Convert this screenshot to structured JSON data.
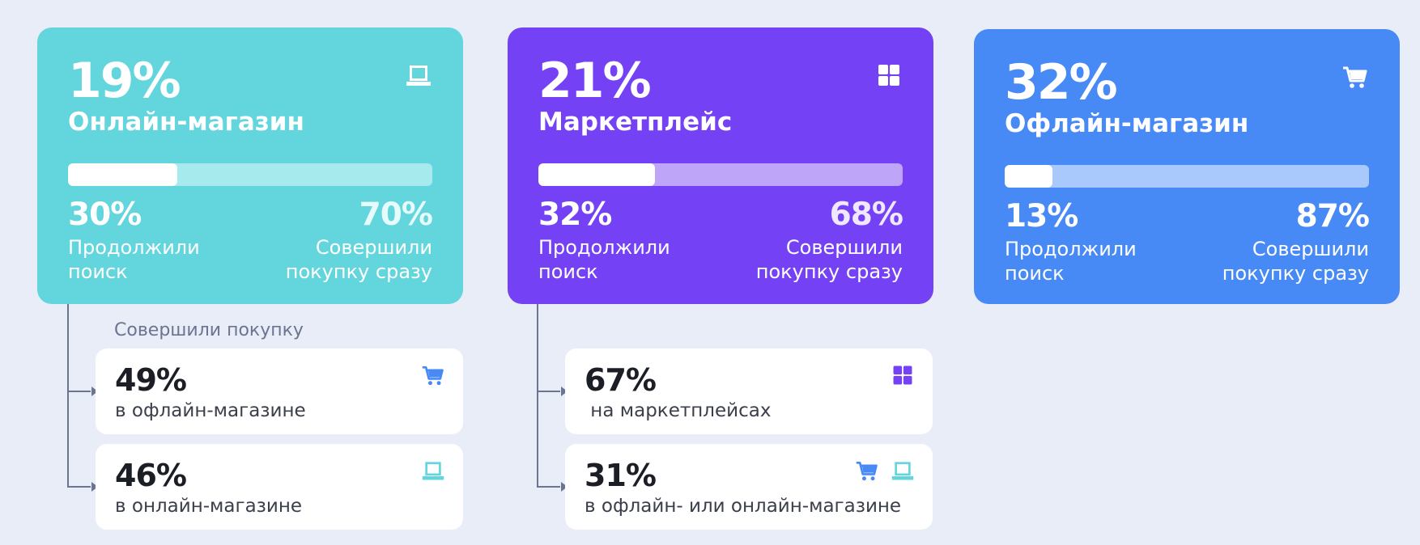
{
  "colors": {
    "online": "#62d5dd",
    "marketplace": "#7441f5",
    "offline": "#4789f5",
    "connector": "#6b7591"
  },
  "cards": [
    {
      "percent": "19%",
      "name": "Онлайн-магазин",
      "icon": "laptop-icon",
      "continued_share": 0.3,
      "left_pct": "30%",
      "left_label": "Продолжили\nпоиск",
      "right_pct": "70%",
      "right_label": "Совершили\nпокупку сразу"
    },
    {
      "percent": "21%",
      "name": "Маркетплейс",
      "icon": "grid-icon",
      "continued_share": 0.32,
      "left_pct": "32%",
      "left_label": "Продолжили\nпоиск",
      "right_pct": "68%",
      "right_label": "Совершили\nпокупку сразу"
    },
    {
      "percent": "32%",
      "name": "Офлайн-магазин",
      "icon": "cart-icon",
      "continued_share": 0.13,
      "left_pct": "13%",
      "left_label": "Продолжили\nпоиск",
      "right_pct": "87%",
      "right_label": "Совершили\nпокупку сразу"
    }
  ],
  "caption": "Совершили покупку",
  "sub_cards": [
    {
      "percent": "49%",
      "label": "в офлайн-магазине",
      "icons": [
        "cart-icon"
      ]
    },
    {
      "percent": "46%",
      "label": "в онлайн-магазине",
      "icons": [
        "laptop-icon"
      ]
    },
    {
      "percent": "67%",
      "label": " на маркетплейсах",
      "icons": [
        "grid-icon"
      ]
    },
    {
      "percent": "31%",
      "label": "в офлайн- или онлайн-магазине",
      "icons": [
        "cart-icon",
        "laptop-icon"
      ]
    }
  ]
}
